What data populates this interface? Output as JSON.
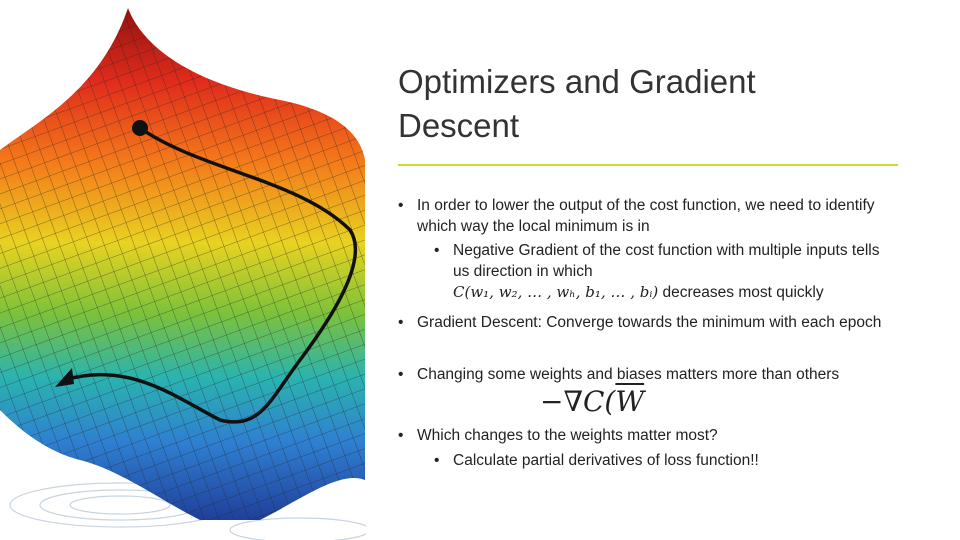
{
  "slide": {
    "title": "Optimizers and Gradient Descent",
    "bullets": [
      {
        "text": "In order to lower the output of the cost function, we need to identify which way the local minimum is in",
        "sub": [
          {
            "text": "Negative Gradient of the cost function with multiple inputs tells us direction in which",
            "formula": "C(w₁, w₂, … , wₕ, b₁, … , bᵢ)",
            "after": "decreases most quickly"
          }
        ]
      },
      {
        "text": "Gradient Descent: Converge towards the minimum with each epoch"
      },
      {
        "text": "Changing some weights and biases matters more than others",
        "gradient": {
          "prefix": "−∇C(",
          "vector": "W"
        }
      },
      {
        "text": "Which changes to the weights matter most?",
        "sub": [
          {
            "text": "Calculate partial derivatives of loss function!!"
          }
        ]
      }
    ]
  }
}
